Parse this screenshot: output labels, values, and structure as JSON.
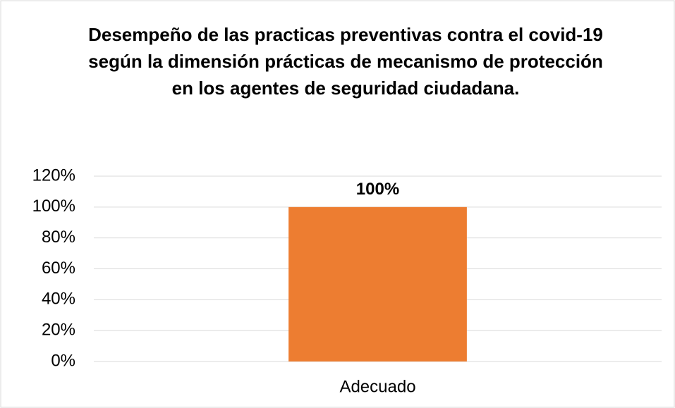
{
  "chart_data": {
    "type": "bar",
    "title": "Desempeño de las practicas preventivas contra el covid-19 según la dimensión prácticas de mecanismo de protección en los agentes de seguridad ciudadana.",
    "categories": [
      "Adecuado"
    ],
    "values": [
      100
    ],
    "value_labels": [
      "100%"
    ],
    "color": "#ed7d31",
    "ylim": [
      0,
      120
    ],
    "yticks": [
      {
        "value": 0,
        "label": "0%"
      },
      {
        "value": 20,
        "label": "20%"
      },
      {
        "value": 40,
        "label": "40%"
      },
      {
        "value": 60,
        "label": "60%"
      },
      {
        "value": 80,
        "label": "80%"
      },
      {
        "value": 100,
        "label": "100%"
      },
      {
        "value": 120,
        "label": "120%"
      }
    ],
    "grid": true
  }
}
